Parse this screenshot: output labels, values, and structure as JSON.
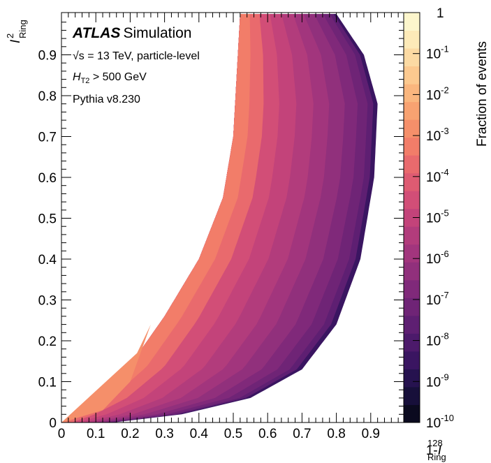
{
  "chart_data": {
    "type": "heatmap",
    "title": "",
    "xlabel_prefix": "1-",
    "xlabel_var": "I",
    "xlabel_sup": "128",
    "xlabel_sub": "Ring",
    "ylabel_var": "I",
    "ylabel_sup": "2",
    "ylabel_sub": "Ring",
    "xlim": [
      0,
      1
    ],
    "ylim": [
      0,
      1
    ],
    "x_ticks": [
      "0",
      "0.1",
      "0.2",
      "0.3",
      "0.4",
      "0.5",
      "0.6",
      "0.7",
      "0.8",
      "0.9"
    ],
    "y_ticks": [
      "0",
      "0.1",
      "0.2",
      "0.3",
      "0.4",
      "0.5",
      "0.6",
      "0.7",
      "0.8",
      "0.9"
    ],
    "colorbar": {
      "label": "Fraction of events",
      "scale": "log",
      "range": [
        1e-10,
        1
      ],
      "tick_bases": [
        "10",
        "10",
        "10",
        "10",
        "10",
        "10",
        "10",
        "10",
        "10",
        "10"
      ],
      "tick_exps": [
        "-10",
        "-9",
        "-8",
        "-7",
        "-6",
        "-5",
        "-4",
        "-3",
        "-2",
        "-1"
      ],
      "top_label": "1",
      "colors": [
        "#0b0a1f",
        "#170f3a",
        "#26124f",
        "#3a1561",
        "#4c1a6b",
        "#5e1f72",
        "#6f2476",
        "#80297a",
        "#91307c",
        "#a2357d",
        "#b23c7c",
        "#c3437a",
        "#d24e77",
        "#de5b72",
        "#e96a6d",
        "#f27d69",
        "#f58f6a",
        "#f8a271",
        "#fab67e",
        "#fcc98f",
        "#fcdaa3",
        "#fdeab8",
        "#fdf6cc"
      ]
    },
    "region_description": [
      {
        "level": "1e-10",
        "x_at_y": [
          [
            0.0,
            0.0
          ],
          [
            0.15,
            0.0
          ],
          [
            0.35,
            0.02
          ],
          [
            0.55,
            0.06
          ],
          [
            0.7,
            0.13
          ],
          [
            0.8,
            0.24
          ],
          [
            0.87,
            0.4
          ],
          [
            0.91,
            0.6
          ],
          [
            0.92,
            0.78
          ],
          [
            0.88,
            0.9
          ],
          [
            0.8,
            1.0
          ]
        ]
      },
      {
        "level": "upper-left boundary",
        "x_at_y": [
          [
            0.0,
            0.0
          ],
          [
            0.1,
            0.06
          ],
          [
            0.2,
            0.14
          ],
          [
            0.3,
            0.26
          ],
          [
            0.4,
            0.4
          ],
          [
            0.47,
            0.55
          ],
          [
            0.5,
            0.7
          ],
          [
            0.51,
            0.85
          ],
          [
            0.52,
            1.0
          ]
        ]
      }
    ],
    "grid": false,
    "legend": "top-left"
  },
  "annotations": {
    "experiment": "ATLAS",
    "tag": "Simulation",
    "line1_sqrt": "√s",
    "line1": " = 13 TeV, particle-level",
    "line2_var": "H",
    "line2_sub": "T2",
    "line2": " > 500 GeV",
    "line3": "Pythia v8.230"
  }
}
